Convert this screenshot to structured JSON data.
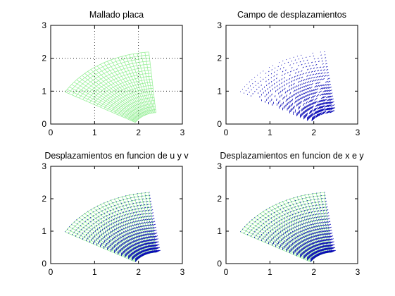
{
  "colors": {
    "mesh": "#90ee90",
    "arrows": "#0000b4",
    "axes": "#000000"
  },
  "chart_data": [
    {
      "type": "mesh",
      "title": "Mallado placa",
      "xlim": [
        0,
        3
      ],
      "ylim": [
        0,
        3
      ],
      "xticks": [
        "0",
        "1",
        "2",
        "3"
      ],
      "yticks": [
        "0",
        "1",
        "2",
        "3"
      ],
      "grid": true,
      "mesh": {
        "r_inner": 1.2,
        "r_outer": 2.4,
        "theta_start_deg": 30,
        "theta_end_deg": 90,
        "center": [
          1.4,
          -0.05
        ],
        "radial_divisions": 20,
        "angular_divisions": 24
      },
      "show_mesh": true,
      "show_field": false
    },
    {
      "type": "quiver",
      "title": "Campo de desplazamientos",
      "xlim": [
        0,
        3
      ],
      "ylim": [
        0,
        3
      ],
      "xticks": [
        "0",
        "1",
        "2",
        "3"
      ],
      "yticks": [
        "0",
        "1",
        "2",
        "3"
      ],
      "grid": false,
      "show_mesh": false,
      "show_field": true
    },
    {
      "type": "mesh+quiver",
      "title": "Desplazamientos en funcion de u y v",
      "xlim": [
        0,
        3
      ],
      "ylim": [
        0,
        3
      ],
      "xticks": [
        "0",
        "1",
        "2",
        "3"
      ],
      "yticks": [
        "0",
        "1",
        "2",
        "3"
      ],
      "grid": false,
      "show_mesh": true,
      "show_field": true
    },
    {
      "type": "mesh+quiver",
      "title": "Desplazamientos en funcion de x e y",
      "xlim": [
        0,
        3
      ],
      "ylim": [
        0,
        3
      ],
      "xticks": [
        "0",
        "1",
        "2",
        "3"
      ],
      "yticks": [
        "0",
        "1",
        "2",
        "3"
      ],
      "grid": false,
      "show_mesh": true,
      "show_field": true
    }
  ]
}
